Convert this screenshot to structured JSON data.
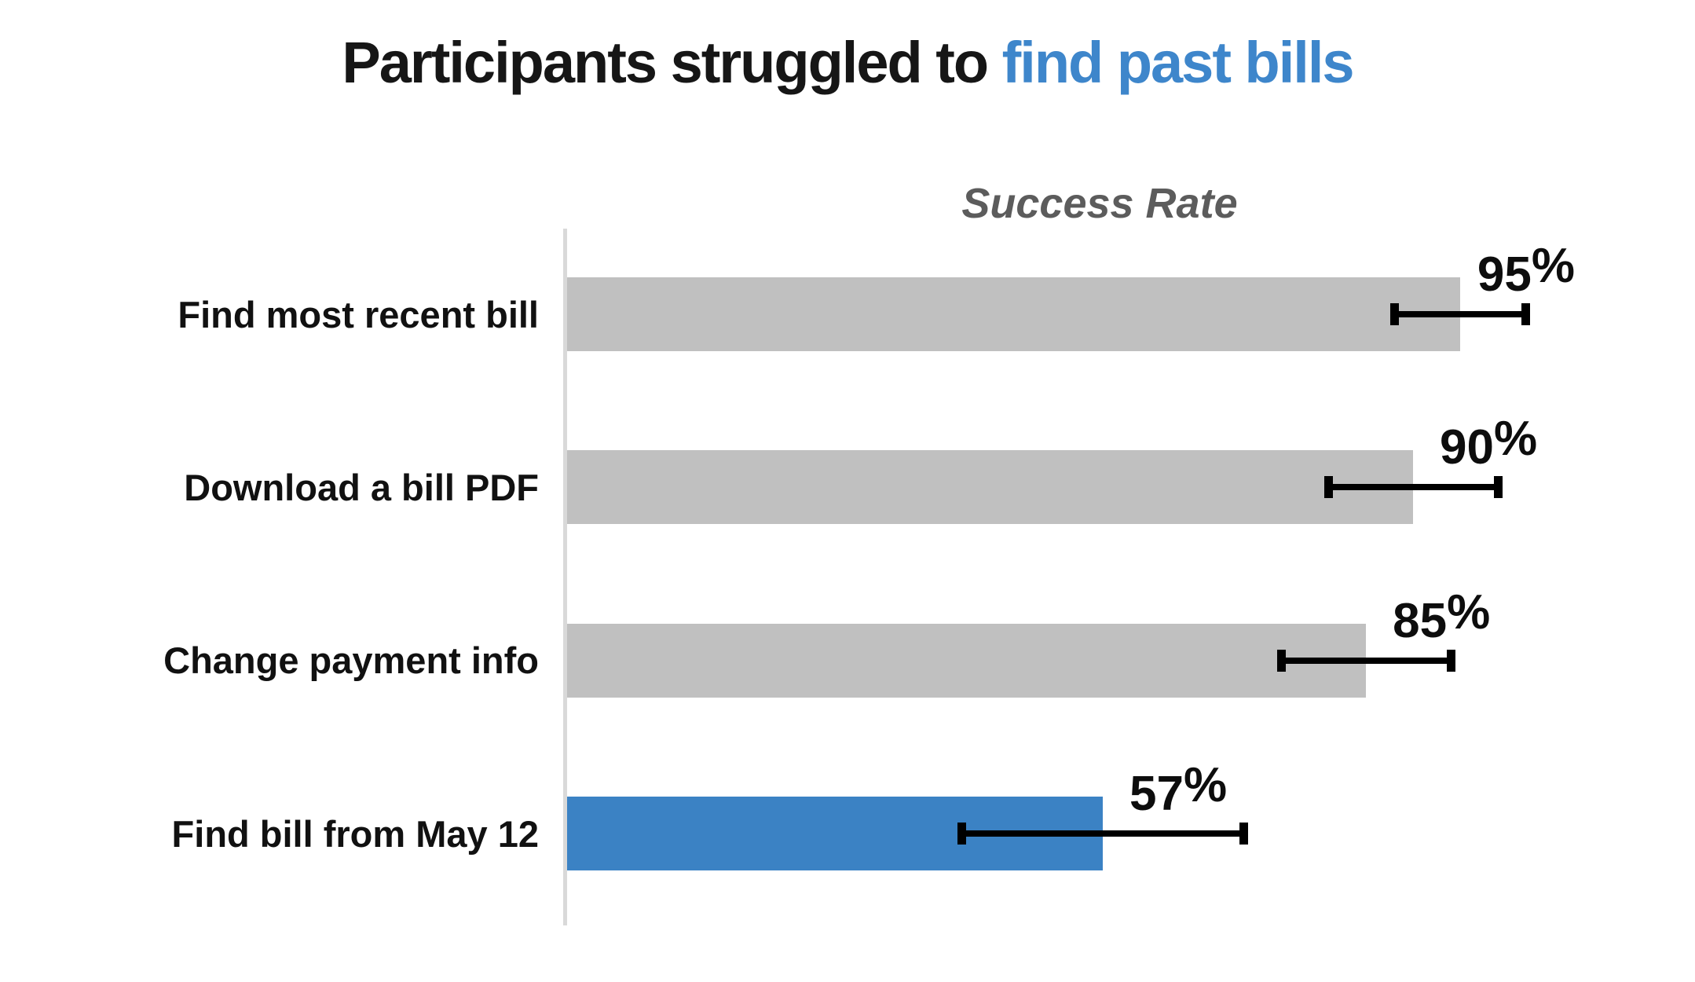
{
  "title": {
    "black_part": "Participants struggled to ",
    "blue_part": "find past bills",
    "black_color": "#161616",
    "blue_color": "#3e86cb"
  },
  "axis_title": "Success Rate",
  "chart_data": {
    "type": "bar",
    "orientation": "horizontal",
    "title": "Participants struggled to find past bills",
    "title_highlight": "find past bills",
    "axis_label": "Success Rate",
    "categories": [
      "Find most recent bill",
      "Download a bill PDF",
      "Change payment info",
      "Find bill from May 12"
    ],
    "values": [
      95,
      90,
      85,
      57
    ],
    "errors": [
      7,
      9,
      9,
      15
    ],
    "value_labels": [
      "95%",
      "90%",
      "85%",
      "57%"
    ],
    "unit": "%",
    "xlim": [
      0,
      100
    ],
    "grid": false,
    "legend": null,
    "highlight_index": 3,
    "bar_color_default": "#c0c0c0",
    "bar_color_highlight": "#3b82c4",
    "error_bar_color": "#000000",
    "axis_line_color": "#d9d9d9",
    "label_x_pct": [
      102,
      98,
      93,
      65
    ]
  }
}
